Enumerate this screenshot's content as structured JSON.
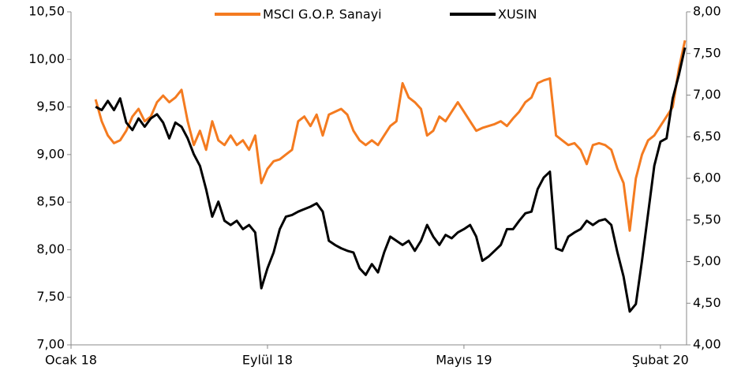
{
  "chart_data": {
    "type": "line",
    "categories": [
      "Ocak 18",
      null,
      null,
      null,
      null,
      null,
      null,
      null,
      null,
      null,
      null,
      null,
      null,
      null,
      null,
      null,
      null,
      null,
      null,
      null,
      null,
      null,
      null,
      null,
      null,
      null,
      null,
      null,
      null,
      null,
      null,
      null,
      "Eylül 18",
      null,
      null,
      null,
      null,
      null,
      null,
      null,
      null,
      null,
      null,
      null,
      null,
      null,
      null,
      null,
      null,
      null,
      null,
      null,
      null,
      null,
      null,
      null,
      null,
      null,
      null,
      null,
      null,
      null,
      null,
      null,
      "Mayıs 19",
      null,
      null,
      null,
      null,
      null,
      null,
      null,
      null,
      null,
      null,
      null,
      null,
      null,
      null,
      null,
      null,
      null,
      null,
      null,
      null,
      null,
      null,
      null,
      null,
      null,
      null,
      null,
      null,
      null,
      null,
      null,
      "Şubat 20",
      null,
      null,
      null,
      null
    ],
    "series": [
      {
        "name": "MSCI G.O.P. Sanayi",
        "color": "#f47b20",
        "axis": "y",
        "values": [
          null,
          null,
          null,
          null,
          9.58,
          9.35,
          9.2,
          9.12,
          9.15,
          9.25,
          9.4,
          9.48,
          9.35,
          9.4,
          9.55,
          9.62,
          9.55,
          9.6,
          9.68,
          9.35,
          9.1,
          9.25,
          9.05,
          9.35,
          9.15,
          9.1,
          9.2,
          9.1,
          9.15,
          9.05,
          9.2,
          8.7,
          8.85,
          8.93,
          8.95,
          9.0,
          9.05,
          9.35,
          9.4,
          9.3,
          9.42,
          9.2,
          9.42,
          9.45,
          9.48,
          9.42,
          9.25,
          9.15,
          9.1,
          9.15,
          9.1,
          9.2,
          9.3,
          9.35,
          9.75,
          9.6,
          9.55,
          9.48,
          9.2,
          9.25,
          9.4,
          9.35,
          9.45,
          9.55,
          9.45,
          9.35,
          9.25,
          9.28,
          9.3,
          9.32,
          9.35,
          9.3,
          9.38,
          9.45,
          9.55,
          9.6,
          9.75,
          9.78,
          9.8,
          9.2,
          9.15,
          9.1,
          9.12,
          9.05,
          8.9,
          9.1,
          9.12,
          9.1,
          9.05,
          8.85,
          8.7,
          8.2,
          8.75,
          9.0,
          9.15,
          9.2,
          9.3,
          9.4,
          9.5,
          9.9,
          10.2
        ]
      },
      {
        "name": "XUSIN",
        "color": "#000000",
        "axis": "y2",
        "values": [
          null,
          null,
          null,
          null,
          6.86,
          6.82,
          6.93,
          6.82,
          6.96,
          6.67,
          6.58,
          6.72,
          6.62,
          6.72,
          6.77,
          6.67,
          6.48,
          6.67,
          6.62,
          6.48,
          6.29,
          6.15,
          5.87,
          5.54,
          5.72,
          5.49,
          5.44,
          5.49,
          5.39,
          5.44,
          5.35,
          4.68,
          4.92,
          5.11,
          5.39,
          5.54,
          5.56,
          5.6,
          5.63,
          5.66,
          5.7,
          5.6,
          5.25,
          5.2,
          5.16,
          5.13,
          5.11,
          4.92,
          4.84,
          4.97,
          4.87,
          5.11,
          5.3,
          5.25,
          5.2,
          5.25,
          5.13,
          5.25,
          5.44,
          5.3,
          5.2,
          5.32,
          5.28,
          5.35,
          5.39,
          5.44,
          5.3,
          5.01,
          5.06,
          5.13,
          5.2,
          5.39,
          5.39,
          5.49,
          5.58,
          5.6,
          5.87,
          6.01,
          6.08,
          5.16,
          5.13,
          5.3,
          5.35,
          5.39,
          5.49,
          5.44,
          5.49,
          5.51,
          5.44,
          5.11,
          4.82,
          4.4,
          4.49,
          5.01,
          5.58,
          6.15,
          6.44,
          6.48,
          6.96,
          7.24,
          7.57
        ]
      }
    ],
    "ylim": [
      7,
      10.5
    ],
    "yticks": [
      {
        "value": 7,
        "label": "7,00"
      },
      {
        "value": 7.5,
        "label": "7,50"
      },
      {
        "value": 8,
        "label": "8,00"
      },
      {
        "value": 8.5,
        "label": "8,50"
      },
      {
        "value": 9,
        "label": "9,00"
      },
      {
        "value": 9.5,
        "label": "9,50"
      },
      {
        "value": 10,
        "label": "10,00"
      },
      {
        "value": 10.5,
        "label": "10,50"
      }
    ],
    "y2lim": [
      4,
      8
    ],
    "y2ticks": [
      {
        "value": 4,
        "label": "4,00"
      },
      {
        "value": 4.5,
        "label": "4,50"
      },
      {
        "value": 5,
        "label": "5,00"
      },
      {
        "value": 5.5,
        "label": "5,50"
      },
      {
        "value": 6,
        "label": "6,00"
      },
      {
        "value": 6.5,
        "label": "6,50"
      },
      {
        "value": 7,
        "label": "7,00"
      },
      {
        "value": 7.5,
        "label": "7,50"
      },
      {
        "value": 8,
        "label": "8,00"
      }
    ],
    "legend": "top",
    "grid": false
  }
}
